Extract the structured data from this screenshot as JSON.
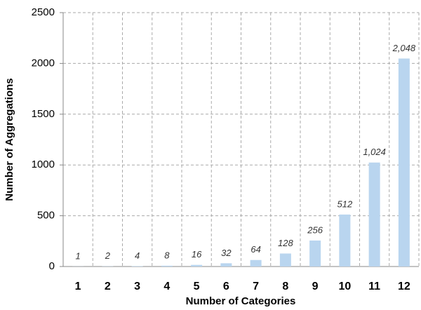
{
  "chart_data": {
    "type": "bar",
    "x_label": "Number of Categories",
    "y_label": "Number of Aggregations",
    "categories": [
      "1",
      "2",
      "3",
      "4",
      "5",
      "6",
      "7",
      "8",
      "9",
      "10",
      "11",
      "12"
    ],
    "values": [
      1,
      2,
      4,
      8,
      16,
      32,
      64,
      128,
      256,
      512,
      1024,
      2048
    ],
    "value_labels": [
      "1",
      "2",
      "4",
      "8",
      "16",
      "32",
      "64",
      "128",
      "256",
      "512",
      "1,024",
      "2,048"
    ],
    "color": "#b9d5ef",
    "ylim": [
      0,
      2500
    ],
    "yticks": [
      0,
      500,
      1000,
      1500,
      2000,
      2500
    ],
    "grid": true
  }
}
